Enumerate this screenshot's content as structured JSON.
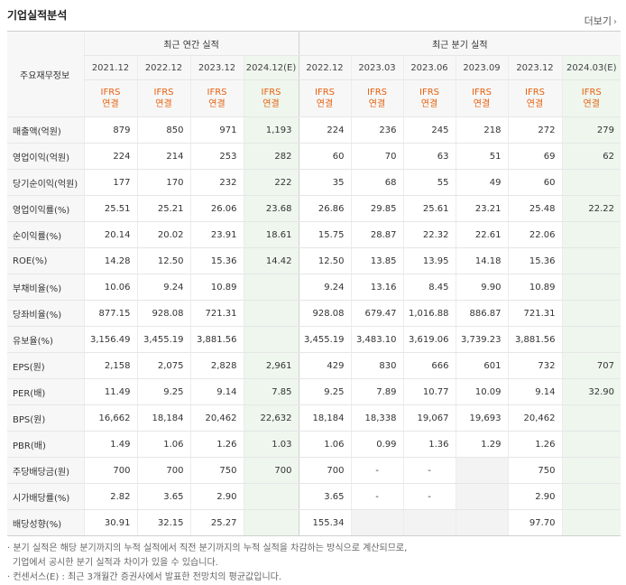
{
  "title": "기업실적분석",
  "more_label": "더보기",
  "more_icon": "chevron-right-icon",
  "corner_label": "주요재무정보",
  "annual_group": "최근 연간 실적",
  "quarter_group": "최근 분기 실적",
  "annual_periods": [
    "2021.12",
    "2022.12",
    "2023.12",
    "2024.12(E)"
  ],
  "quarter_periods": [
    "2022.12",
    "2023.03",
    "2023.06",
    "2023.09",
    "2023.12",
    "2024.03(E)"
  ],
  "ifrs_top": "IFRS",
  "ifrs_bottom": "연결",
  "colors": {
    "ifrs": "#e8610e",
    "estimate_bg": "#eef6ee",
    "header_bg": "#f7f7f7"
  },
  "rows": [
    {
      "label": "매출액(억원)",
      "values": [
        "879",
        "850",
        "971",
        "1,193",
        "224",
        "236",
        "245",
        "218",
        "272",
        "279"
      ]
    },
    {
      "label": "영업이익(억원)",
      "values": [
        "224",
        "214",
        "253",
        "282",
        "60",
        "70",
        "63",
        "51",
        "69",
        "62"
      ]
    },
    {
      "label": "당기순이익(억원)",
      "values": [
        "177",
        "170",
        "232",
        "222",
        "35",
        "68",
        "55",
        "49",
        "60",
        ""
      ]
    },
    {
      "label": "영업이익률(%)",
      "values": [
        "25.51",
        "25.21",
        "26.06",
        "23.68",
        "26.86",
        "29.85",
        "25.61",
        "23.21",
        "25.48",
        "22.22"
      ]
    },
    {
      "label": "순이익률(%)",
      "values": [
        "20.14",
        "20.02",
        "23.91",
        "18.61",
        "15.75",
        "28.87",
        "22.32",
        "22.61",
        "22.06",
        ""
      ]
    },
    {
      "label": "ROE(%)",
      "values": [
        "14.28",
        "12.50",
        "15.36",
        "14.42",
        "12.50",
        "13.85",
        "13.95",
        "14.18",
        "15.36",
        ""
      ]
    },
    {
      "label": "부채비율(%)",
      "values": [
        "10.06",
        "9.24",
        "10.89",
        "",
        "9.24",
        "13.16",
        "8.45",
        "9.90",
        "10.89",
        ""
      ]
    },
    {
      "label": "당좌비율(%)",
      "values": [
        "877.15",
        "928.08",
        "721.31",
        "",
        "928.08",
        "679.47",
        "1,016.88",
        "886.87",
        "721.31",
        ""
      ]
    },
    {
      "label": "유보율(%)",
      "values": [
        "3,156.49",
        "3,455.19",
        "3,881.56",
        "",
        "3,455.19",
        "3,483.10",
        "3,619.06",
        "3,739.23",
        "3,881.56",
        ""
      ]
    },
    {
      "label": "EPS(원)",
      "values": [
        "2,158",
        "2,075",
        "2,828",
        "2,961",
        "429",
        "830",
        "666",
        "601",
        "732",
        "707"
      ]
    },
    {
      "label": "PER(배)",
      "values": [
        "11.49",
        "9.25",
        "9.14",
        "7.85",
        "9.25",
        "7.89",
        "10.77",
        "10.09",
        "9.14",
        "32.90"
      ]
    },
    {
      "label": "BPS(원)",
      "values": [
        "16,662",
        "18,184",
        "20,462",
        "22,632",
        "18,184",
        "18,338",
        "19,067",
        "19,693",
        "20,462",
        ""
      ]
    },
    {
      "label": "PBR(배)",
      "values": [
        "1.49",
        "1.06",
        "1.26",
        "1.03",
        "1.06",
        "0.99",
        "1.36",
        "1.29",
        "1.26",
        ""
      ]
    },
    {
      "label": "주당배당금(원)",
      "values": [
        "700",
        "700",
        "750",
        "700",
        "700",
        "-",
        "-",
        "",
        "750",
        ""
      ]
    },
    {
      "label": "시가배당률(%)",
      "values": [
        "2.82",
        "3.65",
        "2.90",
        "",
        "3.65",
        "-",
        "-",
        "",
        "2.90",
        ""
      ]
    },
    {
      "label": "배당성향(%)",
      "values": [
        "30.91",
        "32.15",
        "25.27",
        "",
        "155.34",
        "",
        "",
        "",
        "97.70",
        ""
      ]
    }
  ],
  "notes": [
    "· 분기 실적은 해당 분기까지의 누적 실적에서 직전 분기까지의 누적 실적을 차감하는 방식으로 계산되므로,",
    "  기업에서 공시한 분기 실적과 차이가 있을 수 있습니다.",
    "· 컨센서스(E) : 최근 3개월간 증권사에서 발표한 전망치의 평균값입니다."
  ]
}
